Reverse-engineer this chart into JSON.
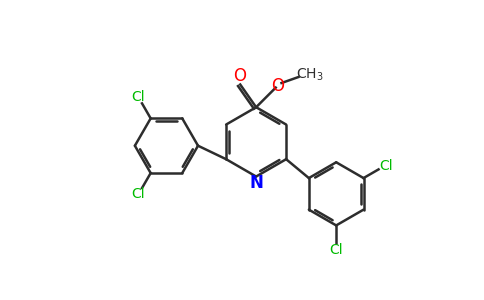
{
  "bg_color": "#ffffff",
  "bond_color": "#2d2d2d",
  "n_color": "#0000ff",
  "o_color": "#ff0000",
  "cl_color": "#00bb00",
  "bond_width": 1.8,
  "figsize": [
    4.84,
    3.0
  ],
  "dpi": 100,
  "xlim": [
    0,
    9.68
  ],
  "ylim": [
    0,
    6.0
  ]
}
